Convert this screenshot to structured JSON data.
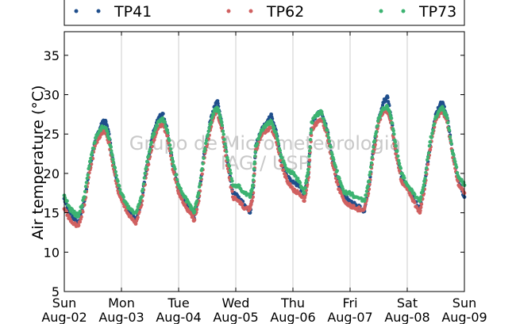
{
  "chart_data": {
    "type": "scatter",
    "ylabel": "Air temperature (°C)",
    "xlabel": "",
    "ylim": [
      5,
      38
    ],
    "yticks": [
      5,
      10,
      15,
      20,
      25,
      30,
      35
    ],
    "xlim": [
      0,
      7
    ],
    "xticks": [
      {
        "x": 0,
        "day": "Sun",
        "date": "Aug-02"
      },
      {
        "x": 1,
        "day": "Mon",
        "date": "Aug-03"
      },
      {
        "x": 2,
        "day": "Tue",
        "date": "Aug-04"
      },
      {
        "x": 3,
        "day": "Wed",
        "date": "Aug-05"
      },
      {
        "x": 4,
        "day": "Thu",
        "date": "Aug-06"
      },
      {
        "x": 5,
        "day": "Fri",
        "date": "Aug-07"
      },
      {
        "x": 6,
        "day": "Sat",
        "date": "Aug-08"
      },
      {
        "x": 7,
        "day": "Sun",
        "date": "Aug-09"
      }
    ],
    "grid": "vertical",
    "legend_position": "top",
    "watermark": [
      "Grupo de Micrometeorologia",
      "IAG / USP"
    ],
    "series": [
      {
        "name": "TP41",
        "color": "#1f4e8c",
        "points": [
          [
            0.0,
            16.8
          ],
          [
            0.1,
            14.9
          ],
          [
            0.2,
            14.0
          ],
          [
            0.25,
            13.8
          ],
          [
            0.35,
            16.5
          ],
          [
            0.45,
            21.0
          ],
          [
            0.55,
            24.5
          ],
          [
            0.65,
            26.3
          ],
          [
            0.72,
            26.7
          ],
          [
            0.78,
            25.0
          ],
          [
            0.85,
            21.5
          ],
          [
            0.95,
            18.0
          ],
          [
            1.05,
            16.3
          ],
          [
            1.15,
            15.0
          ],
          [
            1.25,
            14.0
          ],
          [
            1.35,
            16.5
          ],
          [
            1.45,
            21.0
          ],
          [
            1.55,
            25.0
          ],
          [
            1.65,
            27.0
          ],
          [
            1.72,
            27.6
          ],
          [
            1.8,
            25.5
          ],
          [
            1.9,
            21.0
          ],
          [
            2.0,
            18.0
          ],
          [
            2.1,
            16.5
          ],
          [
            2.2,
            15.5
          ],
          [
            2.27,
            14.3
          ],
          [
            2.35,
            17.0
          ],
          [
            2.45,
            22.5
          ],
          [
            2.55,
            26.5
          ],
          [
            2.63,
            28.5
          ],
          [
            2.68,
            29.2
          ],
          [
            2.75,
            26.5
          ],
          [
            2.85,
            21.5
          ],
          [
            2.95,
            17.5
          ],
          [
            3.05,
            17.0
          ],
          [
            3.15,
            16.0
          ],
          [
            3.25,
            15.0
          ],
          [
            3.3,
            17.5
          ],
          [
            3.35,
            23.5
          ],
          [
            3.45,
            25.5
          ],
          [
            3.55,
            26.5
          ],
          [
            3.62,
            27.5
          ],
          [
            3.7,
            25.5
          ],
          [
            3.8,
            21.5
          ],
          [
            3.9,
            19.5
          ],
          [
            4.0,
            19.0
          ],
          [
            4.1,
            18.5
          ],
          [
            4.2,
            17.0
          ],
          [
            4.27,
            20.0
          ],
          [
            4.33,
            26.5
          ],
          [
            4.42,
            27.5
          ],
          [
            4.5,
            27.8
          ],
          [
            4.6,
            25.5
          ],
          [
            4.7,
            21.5
          ],
          [
            4.8,
            18.5
          ],
          [
            4.9,
            17.0
          ],
          [
            5.0,
            16.5
          ],
          [
            5.1,
            16.0
          ],
          [
            5.25,
            15.2
          ],
          [
            5.33,
            18.5
          ],
          [
            5.42,
            23.5
          ],
          [
            5.5,
            27.0
          ],
          [
            5.58,
            29.0
          ],
          [
            5.65,
            29.8
          ],
          [
            5.72,
            27.0
          ],
          [
            5.8,
            23.0
          ],
          [
            5.9,
            19.5
          ],
          [
            6.0,
            18.5
          ],
          [
            6.1,
            17.0
          ],
          [
            6.22,
            15.5
          ],
          [
            6.3,
            18.5
          ],
          [
            6.4,
            23.5
          ],
          [
            6.5,
            27.5
          ],
          [
            6.58,
            28.8
          ],
          [
            6.62,
            29.0
          ],
          [
            6.7,
            27.0
          ],
          [
            6.8,
            22.5
          ],
          [
            6.9,
            19.0
          ],
          [
            7.0,
            17.0
          ]
        ]
      },
      {
        "name": "TP62",
        "color": "#d06060",
        "points": [
          [
            0.0,
            15.5
          ],
          [
            0.1,
            14.2
          ],
          [
            0.2,
            13.5
          ],
          [
            0.25,
            13.4
          ],
          [
            0.35,
            16.0
          ],
          [
            0.45,
            20.5
          ],
          [
            0.55,
            23.8
          ],
          [
            0.65,
            25.2
          ],
          [
            0.72,
            25.3
          ],
          [
            0.78,
            24.0
          ],
          [
            0.85,
            21.0
          ],
          [
            0.95,
            17.5
          ],
          [
            1.05,
            15.8
          ],
          [
            1.15,
            14.5
          ],
          [
            1.25,
            13.6
          ],
          [
            1.35,
            16.0
          ],
          [
            1.45,
            20.5
          ],
          [
            1.55,
            24.0
          ],
          [
            1.65,
            26.0
          ],
          [
            1.72,
            26.2
          ],
          [
            1.8,
            24.8
          ],
          [
            1.9,
            20.5
          ],
          [
            2.0,
            17.5
          ],
          [
            2.1,
            16.0
          ],
          [
            2.2,
            15.0
          ],
          [
            2.27,
            14.0
          ],
          [
            2.35,
            16.5
          ],
          [
            2.45,
            22.0
          ],
          [
            2.55,
            25.5
          ],
          [
            2.63,
            27.5
          ],
          [
            2.68,
            27.8
          ],
          [
            2.75,
            25.8
          ],
          [
            2.85,
            21.0
          ],
          [
            2.95,
            17.0
          ],
          [
            3.05,
            16.5
          ],
          [
            3.15,
            15.5
          ],
          [
            3.25,
            15.5
          ],
          [
            3.3,
            17.0
          ],
          [
            3.35,
            23.0
          ],
          [
            3.45,
            24.8
          ],
          [
            3.55,
            25.5
          ],
          [
            3.62,
            25.8
          ],
          [
            3.7,
            24.5
          ],
          [
            3.8,
            21.0
          ],
          [
            3.9,
            19.0
          ],
          [
            4.0,
            18.0
          ],
          [
            4.1,
            17.5
          ],
          [
            4.2,
            16.5
          ],
          [
            4.27,
            19.5
          ],
          [
            4.33,
            25.5
          ],
          [
            4.42,
            26.5
          ],
          [
            4.5,
            26.8
          ],
          [
            4.6,
            24.8
          ],
          [
            4.7,
            21.0
          ],
          [
            4.8,
            18.0
          ],
          [
            4.9,
            16.5
          ],
          [
            5.0,
            16.0
          ],
          [
            5.1,
            15.5
          ],
          [
            5.25,
            15.5
          ],
          [
            5.33,
            18.0
          ],
          [
            5.42,
            23.0
          ],
          [
            5.5,
            26.5
          ],
          [
            5.58,
            27.8
          ],
          [
            5.65,
            28.0
          ],
          [
            5.72,
            26.5
          ],
          [
            5.8,
            22.5
          ],
          [
            5.9,
            19.0
          ],
          [
            6.0,
            18.0
          ],
          [
            6.1,
            16.5
          ],
          [
            6.22,
            15.0
          ],
          [
            6.3,
            18.0
          ],
          [
            6.4,
            23.0
          ],
          [
            6.5,
            26.8
          ],
          [
            6.58,
            27.8
          ],
          [
            6.62,
            27.9
          ],
          [
            6.7,
            26.5
          ],
          [
            6.8,
            22.0
          ],
          [
            6.9,
            18.5
          ],
          [
            7.0,
            17.5
          ]
        ]
      },
      {
        "name": "TP73",
        "color": "#3cb371",
        "points": [
          [
            0.0,
            17.2
          ],
          [
            0.1,
            15.5
          ],
          [
            0.2,
            14.8
          ],
          [
            0.25,
            14.6
          ],
          [
            0.35,
            17.0
          ],
          [
            0.45,
            21.5
          ],
          [
            0.55,
            24.5
          ],
          [
            0.65,
            25.8
          ],
          [
            0.72,
            25.8
          ],
          [
            0.78,
            24.5
          ],
          [
            0.85,
            21.8
          ],
          [
            0.95,
            18.5
          ],
          [
            1.05,
            16.5
          ],
          [
            1.15,
            15.5
          ],
          [
            1.25,
            15.0
          ],
          [
            1.35,
            17.0
          ],
          [
            1.45,
            21.5
          ],
          [
            1.55,
            24.8
          ],
          [
            1.65,
            26.6
          ],
          [
            1.72,
            27.0
          ],
          [
            1.8,
            25.5
          ],
          [
            1.9,
            21.5
          ],
          [
            2.0,
            18.5
          ],
          [
            2.1,
            17.0
          ],
          [
            2.2,
            16.0
          ],
          [
            2.27,
            15.0
          ],
          [
            2.35,
            17.5
          ],
          [
            2.45,
            22.8
          ],
          [
            2.55,
            26.2
          ],
          [
            2.63,
            28.0
          ],
          [
            2.68,
            28.3
          ],
          [
            2.75,
            26.5
          ],
          [
            2.85,
            22.0
          ],
          [
            2.95,
            18.5
          ],
          [
            3.05,
            18.5
          ],
          [
            3.15,
            17.5
          ],
          [
            3.25,
            17.0
          ],
          [
            3.3,
            18.5
          ],
          [
            3.35,
            23.5
          ],
          [
            3.45,
            25.5
          ],
          [
            3.55,
            26.2
          ],
          [
            3.62,
            26.6
          ],
          [
            3.7,
            25.2
          ],
          [
            3.8,
            22.0
          ],
          [
            3.9,
            20.5
          ],
          [
            4.0,
            20.0
          ],
          [
            4.1,
            19.0
          ],
          [
            4.2,
            17.5
          ],
          [
            4.27,
            20.5
          ],
          [
            4.33,
            26.5
          ],
          [
            4.42,
            27.5
          ],
          [
            4.5,
            27.8
          ],
          [
            4.6,
            25.5
          ],
          [
            4.7,
            22.0
          ],
          [
            4.8,
            19.5
          ],
          [
            4.9,
            17.5
          ],
          [
            5.0,
            17.5
          ],
          [
            5.1,
            17.0
          ],
          [
            5.25,
            16.5
          ],
          [
            5.33,
            19.0
          ],
          [
            5.42,
            24.0
          ],
          [
            5.5,
            27.0
          ],
          [
            5.58,
            28.3
          ],
          [
            5.65,
            28.5
          ],
          [
            5.72,
            27.0
          ],
          [
            5.8,
            23.5
          ],
          [
            5.9,
            20.0
          ],
          [
            6.0,
            18.5
          ],
          [
            6.1,
            17.5
          ],
          [
            6.22,
            16.5
          ],
          [
            6.3,
            19.0
          ],
          [
            6.4,
            24.0
          ],
          [
            6.5,
            27.2
          ],
          [
            6.58,
            28.2
          ],
          [
            6.62,
            28.3
          ],
          [
            6.7,
            27.0
          ],
          [
            6.8,
            22.5
          ],
          [
            6.9,
            19.5
          ],
          [
            7.0,
            18.5
          ]
        ]
      }
    ]
  }
}
